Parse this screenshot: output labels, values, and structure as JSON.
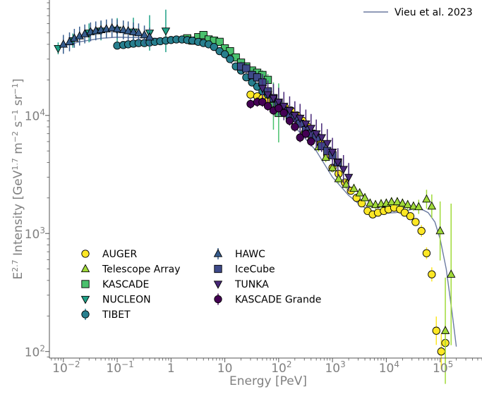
{
  "chart_data": {
    "type": "scatter",
    "xscale": "log",
    "yscale": "log",
    "xlim": [
      0.0055,
      600000
    ],
    "ylim": [
      88,
      95000
    ],
    "xlabel": "Energy [PeV]",
    "ylabel_parts": {
      "prefix": "E",
      "exp1": "2.7",
      "middle1": " Intensity [GeV",
      "exp2": "1.7",
      "middle2": " m",
      "exp3": "−2",
      "middle3": " s",
      "exp4": "−1",
      "middle4": " sr",
      "exp5": "−1",
      "suffix": "]"
    },
    "x_ticks": [
      {
        "value": 0.01,
        "base": "10",
        "exp": "−2"
      },
      {
        "value": 0.1,
        "base": "10",
        "exp": "−1"
      },
      {
        "value": 1,
        "base": "1",
        "exp": ""
      },
      {
        "value": 10,
        "base": "10",
        "exp": ""
      },
      {
        "value": 100,
        "base": "10",
        "exp": "2"
      },
      {
        "value": 1000,
        "base": "10",
        "exp": "3"
      },
      {
        "value": 10000,
        "base": "10",
        "exp": "4"
      },
      {
        "value": 100000,
        "base": "10",
        "exp": "5"
      }
    ],
    "y_ticks": [
      {
        "value": 100,
        "base": "10",
        "exp": "2"
      },
      {
        "value": 1000,
        "base": "10",
        "exp": "3"
      },
      {
        "value": 10000,
        "base": "10",
        "exp": "4"
      }
    ],
    "model": {
      "name": "Vieu et al. 2023",
      "color": "#6b7aa1",
      "x": [
        0.0085,
        0.02,
        0.05,
        0.1,
        0.3,
        1,
        3,
        5,
        10,
        20,
        40,
        100,
        200,
        500,
        1000,
        2000,
        3000,
        5000,
        8000,
        15000,
        25000,
        40000,
        60000,
        80000,
        100000,
        130000,
        170000,
        200000
      ],
      "y": [
        38000,
        42000,
        45000,
        46000,
        45500,
        44500,
        42000,
        39000,
        31000,
        23500,
        17000,
        11500,
        8000,
        5000,
        3000,
        2100,
        1800,
        1550,
        1480,
        1500,
        1570,
        1650,
        1500,
        1250,
        900,
        500,
        200,
        110
      ]
    },
    "series": [
      {
        "name": "AUGER",
        "marker": "circle",
        "color": "#fde725",
        "x": [
          30,
          40,
          50,
          65,
          80,
          100,
          130,
          170,
          220,
          280,
          350,
          450,
          600,
          800,
          1000,
          1300,
          1700,
          2200,
          2800,
          3500,
          4500,
          5600,
          7000,
          9000,
          11000,
          14000,
          18000,
          22000,
          28000,
          35000,
          45000,
          56000,
          70000,
          85000,
          105000,
          125000
        ],
        "y": [
          15000,
          14500,
          14000,
          13500,
          13000,
          12500,
          11800,
          11000,
          10000,
          9000,
          8000,
          7000,
          5800,
          4600,
          3600,
          3200,
          2700,
          2300,
          2000,
          1800,
          1550,
          1450,
          1500,
          1550,
          1600,
          1650,
          1600,
          1500,
          1400,
          1250,
          1050,
          680,
          450,
          150,
          100,
          118
        ],
        "err": [
          0.03,
          0.03,
          0.03,
          0.03,
          0.03,
          0.03,
          0.03,
          0.03,
          0.03,
          0.03,
          0.03,
          0.03,
          0.03,
          0.03,
          0.03,
          0.03,
          0.03,
          0.03,
          0.03,
          0.03,
          0.03,
          0.03,
          0.03,
          0.03,
          0.03,
          0.03,
          0.03,
          0.03,
          0.03,
          0.03,
          0.05,
          0.05,
          0.06,
          0.12,
          0.15,
          0.15
        ]
      },
      {
        "name": "Telescope Array",
        "marker": "triangle-up",
        "color": "#a0da39",
        "x": [
          100,
          130,
          170,
          220,
          300,
          400,
          550,
          750,
          1000,
          1300,
          1800,
          2500,
          3200,
          4000,
          5000,
          6300,
          8000,
          10000,
          12500,
          16000,
          20000,
          25000,
          32000,
          40000,
          56000,
          70000,
          100000,
          125000,
          160000
        ],
        "y": [
          12000,
          10500,
          9500,
          8500,
          7500,
          6500,
          5400,
          4400,
          3600,
          2900,
          2600,
          2400,
          2200,
          2000,
          1800,
          1750,
          1780,
          1800,
          1850,
          1850,
          1800,
          1750,
          1700,
          1680,
          1950,
          1700,
          1050,
          150,
          450
        ],
        "err": [
          0.04,
          0.04,
          0.04,
          0.04,
          0.04,
          0.04,
          0.04,
          0.04,
          0.04,
          0.04,
          0.04,
          0.04,
          0.04,
          0.04,
          0.04,
          0.04,
          0.04,
          0.04,
          0.04,
          0.04,
          0.04,
          0.04,
          0.04,
          0.06,
          0.08,
          0.1,
          0.25,
          0.45,
          0.6
        ]
      },
      {
        "name": "KASCADE",
        "marker": "square",
        "color": "#4ac16d",
        "x": [
          2,
          2.5,
          3.2,
          4,
          5,
          6.3,
          8,
          10,
          12.5,
          16,
          20,
          25,
          32,
          40,
          50,
          63,
          80,
          100
        ],
        "y": [
          45000,
          43000,
          46000,
          48000,
          44000,
          43000,
          42000,
          37000,
          35000,
          31000,
          28000,
          26000,
          24000,
          23000,
          22000,
          20000,
          12000,
          10500
        ],
        "err": [
          0.03,
          0.03,
          0.03,
          0.03,
          0.03,
          0.03,
          0.03,
          0.03,
          0.03,
          0.03,
          0.03,
          0.03,
          0.03,
          0.03,
          0.04,
          0.05,
          0.2,
          0.25
        ]
      },
      {
        "name": "NUCLEON",
        "marker": "triangle-down",
        "color": "#1fa187",
        "x": [
          0.008,
          0.015,
          0.03,
          0.05,
          0.1,
          0.2,
          0.4,
          0.8
        ],
        "y": [
          37000,
          43000,
          50000,
          52000,
          53000,
          51000,
          50000,
          52000
        ],
        "err": [
          0.05,
          0.06,
          0.08,
          0.08,
          0.1,
          0.12,
          0.15,
          0.18
        ]
      },
      {
        "name": "TIBET",
        "marker": "circle",
        "color": "#277f8e",
        "x": [
          0.1,
          0.13,
          0.16,
          0.2,
          0.25,
          0.32,
          0.4,
          0.5,
          0.63,
          0.8,
          1,
          1.26,
          1.6,
          2,
          2.5,
          3.2,
          4,
          5,
          6.3,
          8,
          10,
          12.5,
          16,
          20,
          25,
          32,
          40,
          50,
          63
        ],
        "y": [
          39000,
          39500,
          40000,
          40500,
          41000,
          41000,
          41500,
          42000,
          42500,
          43000,
          43500,
          44000,
          44000,
          43500,
          43000,
          42000,
          41000,
          40000,
          38000,
          35000,
          33000,
          30000,
          26000,
          24000,
          21000,
          19000,
          17500,
          16000,
          15000
        ],
        "err": [
          0.02,
          0.02,
          0.02,
          0.02,
          0.02,
          0.02,
          0.02,
          0.02,
          0.02,
          0.02,
          0.02,
          0.02,
          0.02,
          0.02,
          0.02,
          0.02,
          0.02,
          0.02,
          0.02,
          0.02,
          0.02,
          0.02,
          0.02,
          0.02,
          0.02,
          0.02,
          0.02,
          0.02,
          0.02
        ]
      },
      {
        "name": "HAWC",
        "marker": "triangle-up",
        "color": "#365c8d",
        "x": [
          0.01,
          0.013,
          0.016,
          0.02,
          0.025,
          0.032,
          0.04,
          0.05,
          0.063,
          0.08,
          0.1,
          0.13,
          0.16,
          0.2,
          0.25,
          0.32,
          0.4
        ],
        "y": [
          40000,
          42000,
          45000,
          47000,
          49000,
          51000,
          52000,
          53000,
          54000,
          55000,
          54000,
          53000,
          52000,
          51000,
          50000,
          48000,
          46000
        ],
        "err": [
          0.08,
          0.08,
          0.08,
          0.08,
          0.08,
          0.08,
          0.08,
          0.08,
          0.08,
          0.08,
          0.08,
          0.08,
          0.08,
          0.08,
          0.08,
          0.08,
          0.08
        ]
      },
      {
        "name": "IceCube",
        "marker": "square",
        "color": "#3e4a89",
        "x": [
          20,
          25,
          32,
          40,
          50,
          63,
          80,
          100,
          125,
          160,
          200,
          250,
          320,
          400,
          500,
          630,
          800,
          1000,
          1260
        ],
        "y": [
          26000,
          25000,
          22000,
          21000,
          19000,
          16000,
          14000,
          12500,
          11000,
          10000,
          9500,
          8500,
          7500,
          7000,
          6500,
          5500,
          5000,
          4600,
          4000
        ],
        "err": [
          0.04,
          0.04,
          0.04,
          0.04,
          0.04,
          0.04,
          0.04,
          0.04,
          0.04,
          0.04,
          0.04,
          0.05,
          0.05,
          0.05,
          0.05,
          0.05,
          0.05,
          0.05,
          0.06
        ]
      },
      {
        "name": "TUNKA",
        "marker": "triangle-down",
        "color": "#482878",
        "x": [
          50,
          63,
          80,
          100,
          125,
          160,
          200,
          250,
          320,
          400,
          500,
          630,
          800,
          1000,
          1260,
          1600,
          2000
        ],
        "y": [
          17000,
          15000,
          14000,
          13000,
          12000,
          11000,
          10000,
          9500,
          8500,
          7800,
          7000,
          6500,
          5800,
          4900,
          4000,
          3500,
          3000
        ],
        "err": [
          0.12,
          0.12,
          0.12,
          0.12,
          0.12,
          0.12,
          0.12,
          0.12,
          0.12,
          0.12,
          0.12,
          0.12,
          0.12,
          0.12,
          0.12,
          0.12,
          0.12
        ]
      },
      {
        "name": "KASCADE Grande",
        "marker": "circle",
        "color": "#440154",
        "x": [
          30,
          40,
          50,
          63,
          80,
          100,
          125,
          160,
          200,
          250,
          320,
          400
        ],
        "y": [
          12500,
          13000,
          13000,
          12000,
          11000,
          11500,
          10500,
          9000,
          8000,
          6500,
          7000,
          6000
        ],
        "err": [
          0.04,
          0.04,
          0.04,
          0.04,
          0.04,
          0.04,
          0.04,
          0.04,
          0.04,
          0.04,
          0.04,
          0.04
        ]
      }
    ]
  }
}
